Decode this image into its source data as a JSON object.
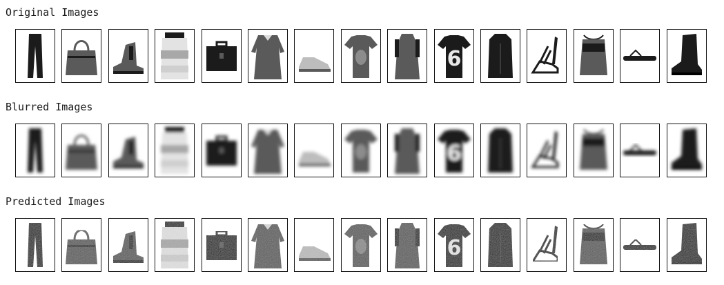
{
  "sections": [
    {
      "id": "original",
      "title": "Original Images",
      "render": "sharp"
    },
    {
      "id": "blurred",
      "title": "Blurred Images",
      "render": "blurred"
    },
    {
      "id": "predicted",
      "title": "Predicted Images",
      "render": "predicted"
    }
  ],
  "columns": [
    {
      "item": "trouser",
      "icon": "trouser-icon"
    },
    {
      "item": "bag",
      "icon": "handbag-icon"
    },
    {
      "item": "ankle-boot",
      "icon": "ankle-boot-icon"
    },
    {
      "item": "pullover",
      "icon": "pullover-icon"
    },
    {
      "item": "bag",
      "icon": "briefcase-icon"
    },
    {
      "item": "dress",
      "icon": "dress-icon"
    },
    {
      "item": "sneaker",
      "icon": "sneaker-icon"
    },
    {
      "item": "t-shirt",
      "icon": "tshirt-icon"
    },
    {
      "item": "dress",
      "icon": "long-dress-icon"
    },
    {
      "item": "t-shirt",
      "icon": "number-six-shirt-icon",
      "shirt_number": "6"
    },
    {
      "item": "coat",
      "icon": "coat-icon"
    },
    {
      "item": "sandal",
      "icon": "sandal-icon"
    },
    {
      "item": "bag",
      "icon": "drawstring-bag-icon"
    },
    {
      "item": "sandal",
      "icon": "flip-flop-icon"
    },
    {
      "item": "ankle-boot",
      "icon": "boot-icon"
    }
  ],
  "colors": {
    "dark": "#1b1b1b",
    "mid": "#5a5a5a",
    "light": "#bdbdbd",
    "frame": "#111111",
    "title": "#1a1a1a"
  }
}
